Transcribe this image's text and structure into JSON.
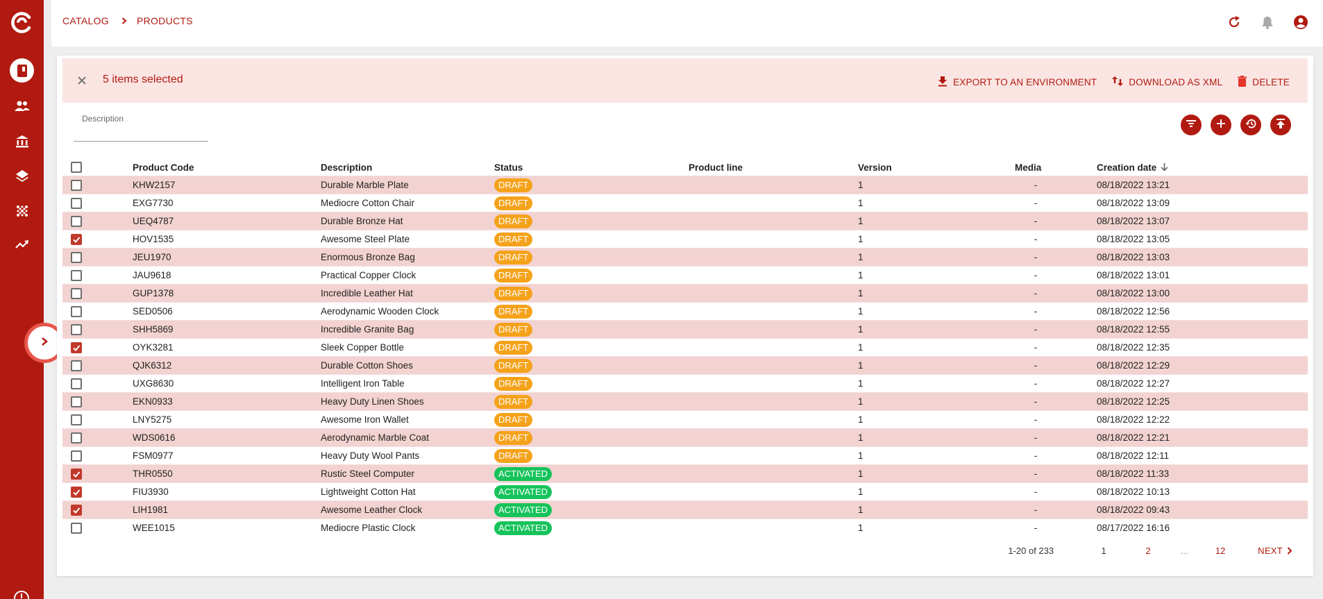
{
  "breadcrumb": {
    "catalog": "CATALOG",
    "products": "PRODUCTS"
  },
  "icons": {
    "logo": "logo-icon",
    "catalog": "book-icon",
    "users": "people-icon",
    "bank": "bank-icon",
    "layers": "layers-icon",
    "grid": "dots-grid-icon",
    "analytics": "trending-up-icon",
    "refresh": "refresh-icon",
    "notifications": "bell-icon",
    "account": "account-icon"
  },
  "selection": {
    "count_label": "5 items selected",
    "export_label": "EXPORT TO AN ENVIRONMENT",
    "download_label": "DOWNLOAD AS XML",
    "delete_label": "DELETE"
  },
  "filter": {
    "label": "Description",
    "value": ""
  },
  "table": {
    "headers": {
      "code": "Product Code",
      "description": "Description",
      "status": "Status",
      "product_line": "Product line",
      "version": "Version",
      "media": "Media",
      "creation_date": "Creation date"
    },
    "rows": [
      {
        "checked": false,
        "code": "KHW2157",
        "description": "Durable Marble Plate",
        "status": "DRAFT",
        "product_line": "",
        "version": "1",
        "media": "-",
        "date": "08/18/2022 13:21"
      },
      {
        "checked": false,
        "code": "EXG7730",
        "description": "Mediocre Cotton Chair",
        "status": "DRAFT",
        "product_line": "",
        "version": "1",
        "media": "-",
        "date": "08/18/2022 13:09"
      },
      {
        "checked": false,
        "code": "UEQ4787",
        "description": "Durable Bronze Hat",
        "status": "DRAFT",
        "product_line": "",
        "version": "1",
        "media": "-",
        "date": "08/18/2022 13:07"
      },
      {
        "checked": true,
        "code": "HOV1535",
        "description": "Awesome Steel Plate",
        "status": "DRAFT",
        "product_line": "",
        "version": "1",
        "media": "-",
        "date": "08/18/2022 13:05"
      },
      {
        "checked": false,
        "code": "JEU1970",
        "description": "Enormous Bronze Bag",
        "status": "DRAFT",
        "product_line": "",
        "version": "1",
        "media": "-",
        "date": "08/18/2022 13:03"
      },
      {
        "checked": false,
        "code": "JAU9618",
        "description": "Practical Copper Clock",
        "status": "DRAFT",
        "product_line": "",
        "version": "1",
        "media": "-",
        "date": "08/18/2022 13:01"
      },
      {
        "checked": false,
        "code": "GUP1378",
        "description": "Incredible Leather Hat",
        "status": "DRAFT",
        "product_line": "",
        "version": "1",
        "media": "-",
        "date": "08/18/2022 13:00"
      },
      {
        "checked": false,
        "code": "SED0506",
        "description": "Aerodynamic Wooden Clock",
        "status": "DRAFT",
        "product_line": "",
        "version": "1",
        "media": "-",
        "date": "08/18/2022 12:56"
      },
      {
        "checked": false,
        "code": "SHH5869",
        "description": "Incredible Granite Bag",
        "status": "DRAFT",
        "product_line": "",
        "version": "1",
        "media": "-",
        "date": "08/18/2022 12:55"
      },
      {
        "checked": true,
        "code": "OYK3281",
        "description": "Sleek Copper Bottle",
        "status": "DRAFT",
        "product_line": "",
        "version": "1",
        "media": "-",
        "date": "08/18/2022 12:35"
      },
      {
        "checked": false,
        "code": "QJK6312",
        "description": "Durable Cotton Shoes",
        "status": "DRAFT",
        "product_line": "",
        "version": "1",
        "media": "-",
        "date": "08/18/2022 12:29"
      },
      {
        "checked": false,
        "code": "UXG8630",
        "description": "Intelligent Iron Table",
        "status": "DRAFT",
        "product_line": "",
        "version": "1",
        "media": "-",
        "date": "08/18/2022 12:27"
      },
      {
        "checked": false,
        "code": "EKN0933",
        "description": "Heavy Duty Linen Shoes",
        "status": "DRAFT",
        "product_line": "",
        "version": "1",
        "media": "-",
        "date": "08/18/2022 12:25"
      },
      {
        "checked": false,
        "code": "LNY5275",
        "description": "Awesome Iron Wallet",
        "status": "DRAFT",
        "product_line": "",
        "version": "1",
        "media": "-",
        "date": "08/18/2022 12:22"
      },
      {
        "checked": false,
        "code": "WDS0616",
        "description": "Aerodynamic Marble Coat",
        "status": "DRAFT",
        "product_line": "",
        "version": "1",
        "media": "-",
        "date": "08/18/2022 12:21"
      },
      {
        "checked": false,
        "code": "FSM0977",
        "description": "Heavy Duty Wool Pants",
        "status": "DRAFT",
        "product_line": "",
        "version": "1",
        "media": "-",
        "date": "08/18/2022 12:11"
      },
      {
        "checked": true,
        "code": "THR0550",
        "description": "Rustic Steel Computer",
        "status": "ACTIVATED",
        "product_line": "",
        "version": "1",
        "media": "-",
        "date": "08/18/2022 11:33"
      },
      {
        "checked": true,
        "code": "FIU3930",
        "description": "Lightweight Cotton Hat",
        "status": "ACTIVATED",
        "product_line": "",
        "version": "1",
        "media": "-",
        "date": "08/18/2022 10:13"
      },
      {
        "checked": true,
        "code": "LIH1981",
        "description": "Awesome Leather Clock",
        "status": "ACTIVATED",
        "product_line": "",
        "version": "1",
        "media": "-",
        "date": "08/18/2022 09:43"
      },
      {
        "checked": false,
        "code": "WEE1015",
        "description": "Mediocre Plastic Clock",
        "status": "ACTIVATED",
        "product_line": "",
        "version": "1",
        "media": "-",
        "date": "08/17/2022 16:16"
      }
    ]
  },
  "pagination": {
    "range": "1-20 of 233",
    "page_1": "1",
    "page_2": "2",
    "ellipsis": "...",
    "page_last": "12",
    "next_label": "NEXT"
  },
  "colors": {
    "brand": "#b11a10",
    "draft": "#f5a21b",
    "activated": "#16c35b",
    "row_alt": "#f2d3d1",
    "selection_bg": "#fbe5e3"
  }
}
